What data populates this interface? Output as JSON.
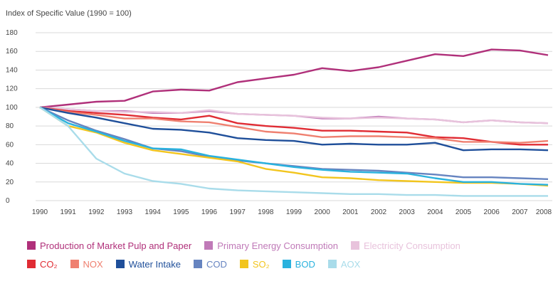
{
  "chart_data": {
    "type": "line",
    "ylabel": "Index of Specific Value (1990 = 100)",
    "ylim": [
      0,
      180
    ],
    "yticks": [
      "0",
      "20",
      "40",
      "60",
      "80",
      "100",
      "120",
      "140",
      "160",
      "180"
    ],
    "x": [
      "1990",
      "1991",
      "1992",
      "1993",
      "1994",
      "1995",
      "1996",
      "1997",
      "1998",
      "1999",
      "2000",
      "2001",
      "2002",
      "2003",
      "2004",
      "2005",
      "2006",
      "2007",
      "2008"
    ],
    "grid": true,
    "legend_position": "bottom",
    "series": [
      {
        "name": "Production of Market Pulp and Paper",
        "color": "#b0307a",
        "values": [
          100,
          103,
          106,
          107,
          117,
          119,
          118,
          127,
          131,
          135,
          142,
          139,
          143,
          150,
          157,
          155,
          162,
          161,
          156
        ]
      },
      {
        "name": "Primary Energy Consumption",
        "color": "#c07ab8",
        "values": [
          100,
          98,
          96,
          96,
          94,
          94,
          96,
          93,
          92,
          91,
          88,
          88,
          90,
          88,
          87,
          84,
          86,
          84,
          83
        ]
      },
      {
        "name": "Electricity Consumption",
        "color": "#e8c3dc",
        "values": [
          100,
          98,
          96,
          95,
          95,
          94,
          97,
          93,
          92,
          91,
          89,
          88,
          89,
          88,
          87,
          84,
          86,
          84,
          83
        ]
      },
      {
        "name": "CO₂",
        "color": "#e02c34",
        "values": [
          100,
          96,
          94,
          92,
          89,
          87,
          91,
          83,
          80,
          78,
          75,
          75,
          74,
          73,
          68,
          67,
          63,
          60,
          60
        ]
      },
      {
        "name": "NOX",
        "color": "#ef8070",
        "values": [
          100,
          95,
          92,
          88,
          88,
          85,
          84,
          79,
          74,
          72,
          68,
          69,
          69,
          68,
          67,
          63,
          63,
          62,
          64
        ]
      },
      {
        "name": "Water Intake",
        "color": "#1f4f9a",
        "values": [
          100,
          94,
          89,
          83,
          77,
          76,
          73,
          67,
          65,
          64,
          60,
          61,
          60,
          60,
          62,
          54,
          55,
          55,
          54
        ]
      },
      {
        "name": "COD",
        "color": "#6684c0",
        "values": [
          100,
          86,
          75,
          66,
          56,
          53,
          47,
          43,
          40,
          37,
          34,
          33,
          32,
          30,
          28,
          25,
          25,
          24,
          23
        ]
      },
      {
        "name": "SO₂",
        "color": "#f2c51e",
        "values": [
          100,
          80,
          73,
          62,
          54,
          50,
          46,
          42,
          34,
          30,
          25,
          24,
          22,
          21,
          20,
          19,
          19,
          18,
          16
        ]
      },
      {
        "name": "BOD",
        "color": "#2ab2de",
        "values": [
          100,
          83,
          74,
          64,
          56,
          55,
          48,
          44,
          40,
          36,
          33,
          31,
          30,
          29,
          24,
          20,
          20,
          18,
          17
        ]
      },
      {
        "name": "AOX",
        "color": "#a9dcea",
        "values": [
          100,
          80,
          45,
          29,
          21,
          18,
          13,
          11,
          10,
          9,
          8,
          7,
          7,
          6,
          6,
          5,
          5,
          5,
          5
        ]
      }
    ]
  },
  "legend": {
    "rows": [
      [
        {
          "label": "Production of Market Pulp and Paper",
          "color": "#b0307a"
        },
        {
          "label": "Primary Energy Consumption",
          "color": "#c07ab8"
        },
        {
          "label": "Electricity Consumption",
          "color": "#e8c3dc"
        }
      ],
      [
        {
          "label": "CO₂",
          "color": "#e02c34"
        },
        {
          "label": "NOX",
          "color": "#ef8070"
        },
        {
          "label": "Water Intake",
          "color": "#1f4f9a"
        },
        {
          "label": "COD",
          "color": "#6684c0"
        },
        {
          "label": "SO₂",
          "color": "#f2c51e"
        },
        {
          "label": "BOD",
          "color": "#2ab2de"
        },
        {
          "label": "AOX",
          "color": "#a9dcea"
        }
      ]
    ]
  }
}
